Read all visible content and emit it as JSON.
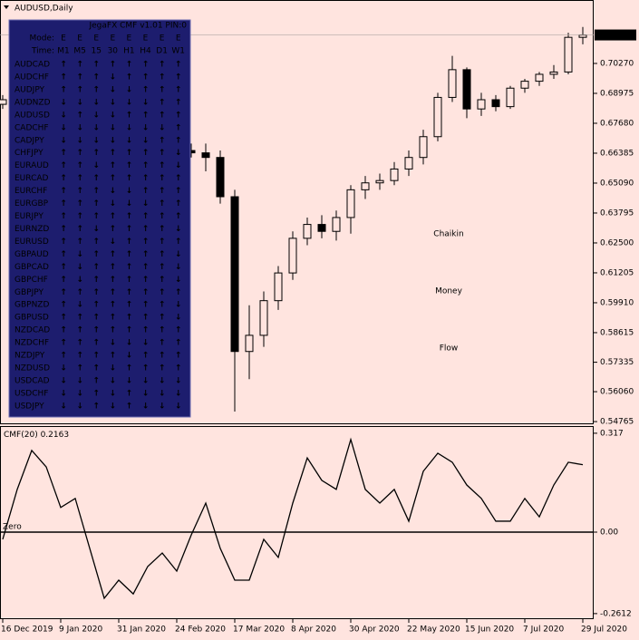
{
  "chart_data": [
    {
      "type": "candlestick",
      "title": "AUDUSD,Daily",
      "categories": [
        "16 Dec 2019",
        null,
        null,
        null,
        "9 Jan 2020",
        null,
        null,
        null,
        "31 Jan 2020",
        null,
        null,
        null,
        "24 Feb 2020",
        null,
        null,
        null,
        "17 Mar 2020",
        null,
        null,
        null,
        "8 Apr 2020",
        null,
        null,
        null,
        "30 Apr 2020",
        null,
        null,
        null,
        "22 May 2020",
        null,
        null,
        null,
        "15 Jun 2020",
        null,
        null,
        null,
        "7 Jul 2020",
        null,
        null,
        null,
        "29 Jul 2020"
      ],
      "open": [
        0.685,
        0.687,
        0.69,
        0.696,
        0.699,
        0.693,
        0.688,
        0.686,
        0.683,
        0.676,
        0.671,
        0.673,
        0.668,
        0.665,
        0.664,
        0.662,
        0.645,
        0.578,
        0.585,
        0.6,
        0.612,
        0.627,
        0.633,
        0.63,
        0.636,
        0.648,
        0.651,
        0.652,
        0.657,
        0.662,
        0.671,
        0.688,
        0.7,
        0.683,
        0.687,
        0.684,
        0.692,
        0.695,
        0.698,
        0.699,
        0.714
      ],
      "high": [
        0.689,
        0.692,
        0.698,
        0.701,
        0.701,
        0.695,
        0.69,
        0.688,
        0.685,
        0.678,
        0.675,
        0.675,
        0.67,
        0.668,
        0.668,
        0.665,
        0.648,
        0.598,
        0.604,
        0.615,
        0.63,
        0.636,
        0.637,
        0.639,
        0.65,
        0.654,
        0.655,
        0.66,
        0.665,
        0.674,
        0.69,
        0.706,
        0.701,
        0.69,
        0.689,
        0.693,
        0.696,
        0.699,
        0.702,
        0.716,
        0.7185
      ],
      "low": [
        0.683,
        0.685,
        0.688,
        0.694,
        0.692,
        0.687,
        0.684,
        0.681,
        0.675,
        0.67,
        0.669,
        0.667,
        0.664,
        0.662,
        0.656,
        0.642,
        0.552,
        0.566,
        0.58,
        0.596,
        0.609,
        0.624,
        0.627,
        0.626,
        0.629,
        0.644,
        0.648,
        0.65,
        0.654,
        0.659,
        0.669,
        0.686,
        0.679,
        0.68,
        0.682,
        0.683,
        0.69,
        0.693,
        0.696,
        0.698,
        0.711
      ],
      "close": [
        0.687,
        0.69,
        0.696,
        0.699,
        0.693,
        0.688,
        0.686,
        0.683,
        0.676,
        0.671,
        0.673,
        0.668,
        0.665,
        0.664,
        0.662,
        0.645,
        0.578,
        0.585,
        0.6,
        0.612,
        0.627,
        0.633,
        0.63,
        0.636,
        0.648,
        0.651,
        0.652,
        0.657,
        0.662,
        0.671,
        0.688,
        0.7,
        0.683,
        0.687,
        0.684,
        0.692,
        0.695,
        0.698,
        0.699,
        0.714,
        0.715
      ],
      "color": "#000000",
      "ylim": [
        0.5465,
        0.7231
      ],
      "yticks": [
        {
          "value": 0.7027,
          "label": "0.70270"
        },
        0.68975,
        {
          "value": 0.6768,
          "label": "0.67680"
        },
        0.66385,
        {
          "value": 0.6509,
          "label": "0.65090"
        },
        0.63795,
        {
          "value": 0.625,
          "label": "0.62500"
        },
        0.61205,
        {
          "value": 0.5991,
          "label": "0.59910"
        },
        0.58615,
        0.57335,
        {
          "value": 0.5606,
          "label": "0.56060"
        },
        0.54765
      ],
      "last_price": 0.71503,
      "annotation": [
        "Chaikin",
        "Money",
        "Flow"
      ],
      "annotation_color": "#ff8533"
    },
    {
      "type": "line",
      "name": "CMF(20)",
      "last_value": 0.2163,
      "color": "#000000",
      "values": [
        -0.023,
        0.137,
        0.262,
        0.209,
        0.079,
        0.108,
        -0.052,
        -0.212,
        -0.154,
        -0.198,
        -0.11,
        -0.067,
        -0.125,
        -0.009,
        0.093,
        -0.052,
        -0.154,
        -0.154,
        -0.023,
        -0.081,
        0.093,
        0.238,
        0.166,
        0.137,
        0.297,
        0.137,
        0.093,
        0.137,
        0.035,
        0.195,
        0.253,
        0.224,
        0.151,
        0.108,
        0.035,
        0.035,
        0.108,
        0.049,
        0.151,
        0.224,
        0.216
      ],
      "ylim": [
        -0.279,
        0.34
      ],
      "yticks": [
        0.317,
        {
          "value": 0,
          "label": "0.00"
        },
        -0.2612
      ],
      "level": {
        "value": 0,
        "label": "Zero"
      }
    }
  ],
  "panel": {
    "header": "JegaFX CMF v1.01 PIN:0",
    "mode_label": "Mode:",
    "time_label": "Time:",
    "modes": [
      "E",
      "E",
      "E",
      "E",
      "E",
      "E",
      "E",
      "E"
    ],
    "timeframes": [
      "M1",
      "M5",
      "15",
      "30",
      "H1",
      "H4",
      "D1",
      "W1"
    ],
    "arrow_colors": {
      "↑": "#5ee8d8",
      "↓": "#ff2fd8"
    },
    "rows": [
      {
        "symbol": "AUDCAD",
        "color": "#5ee8d8",
        "arrows": [
          "↑",
          "↑",
          "↑",
          "↑",
          "↑",
          "↑",
          "↑",
          "↑"
        ]
      },
      {
        "symbol": "AUDCHF",
        "color": "#ffffff",
        "arrows": [
          "↑",
          "↑",
          "↑",
          "↓",
          "↑",
          "↑",
          "↑",
          "↑"
        ]
      },
      {
        "symbol": "AUDJPY",
        "color": "#ffffff",
        "arrows": [
          "↑",
          "↑",
          "↑",
          "↓",
          "↓",
          "↑",
          "↑",
          "↑"
        ]
      },
      {
        "symbol": "AUDNZD",
        "color": "#ffffff",
        "arrows": [
          "↓",
          "↓",
          "↓",
          "↓",
          "↓",
          "↓",
          "↑",
          "↑"
        ]
      },
      {
        "symbol": "AUDUSD",
        "color": "#ffffff",
        "arrows": [
          "↓",
          "↑",
          "↓",
          "↓",
          "↑",
          "↑",
          "↑",
          "↑"
        ]
      },
      {
        "symbol": "CADCHF",
        "color": "#ffffff",
        "arrows": [
          "↓",
          "↓",
          "↓",
          "↓",
          "↓",
          "↓",
          "↓",
          "↑"
        ]
      },
      {
        "symbol": "CADJPY",
        "color": "#ffffff",
        "arrows": [
          "↓",
          "↓",
          "↓",
          "↓",
          "↓",
          "↓",
          "↑",
          "↑"
        ]
      },
      {
        "symbol": "CHFJPY",
        "color": "#ffffff",
        "arrows": [
          "↑",
          "↑",
          "↑",
          "↑",
          "↑",
          "↑",
          "↑",
          "↓"
        ]
      },
      {
        "symbol": "EURAUD",
        "color": "#ffffff",
        "arrows": [
          "↑",
          "↑",
          "↓",
          "↑",
          "↑",
          "↑",
          "↑",
          "↓"
        ]
      },
      {
        "symbol": "EURCAD",
        "color": "#5ee8d8",
        "arrows": [
          "↑",
          "↑",
          "↑",
          "↑",
          "↑",
          "↑",
          "↑",
          "↑"
        ]
      },
      {
        "symbol": "EURCHF",
        "color": "#ffffff",
        "arrows": [
          "↑",
          "↑",
          "↑",
          "↓",
          "↓",
          "↑",
          "↑",
          "↑"
        ]
      },
      {
        "symbol": "EURGBP",
        "color": "#ffffff",
        "arrows": [
          "↑",
          "↑",
          "↑",
          "↓",
          "↓",
          "↓",
          "↑",
          "↑"
        ]
      },
      {
        "symbol": "EURJPY",
        "color": "#ffffff",
        "arrows": [
          "↑",
          "↑",
          "↑",
          "↑",
          "↑",
          "↑",
          "↑",
          "↑"
        ]
      },
      {
        "symbol": "EURNZD",
        "color": "#ffffff",
        "arrows": [
          "↑",
          "↑",
          "↓",
          "↑",
          "↑",
          "↑",
          "↑",
          "↓"
        ]
      },
      {
        "symbol": "EURUSD",
        "color": "#ffffff",
        "arrows": [
          "↑",
          "↑",
          "↑",
          "↓",
          "↑",
          "↑",
          "↑",
          "↑"
        ]
      },
      {
        "symbol": "GBPAUD",
        "color": "#ffffff",
        "arrows": [
          "↑",
          "↓",
          "↑",
          "↑",
          "↑",
          "↑",
          "↑",
          "↓"
        ]
      },
      {
        "symbol": "GBPCAD",
        "color": "#5ee8d8",
        "arrows": [
          "↑",
          "↓",
          "↑",
          "↑",
          "↑",
          "↑",
          "↑",
          "↓"
        ]
      },
      {
        "symbol": "GBPCHF",
        "color": "#ffffff",
        "arrows": [
          "↑",
          "↓",
          "↑",
          "↑",
          "↑",
          "↑",
          "↑",
          "↓"
        ]
      },
      {
        "symbol": "GBPJPY",
        "color": "#5ee8d8",
        "arrows": [
          "↑",
          "↑",
          "↑",
          "↑",
          "↑",
          "↑",
          "↑",
          "↑"
        ]
      },
      {
        "symbol": "GBPNZD",
        "color": "#ffffff",
        "arrows": [
          "↑",
          "↓",
          "↑",
          "↑",
          "↑",
          "↑",
          "↑",
          "↓"
        ]
      },
      {
        "symbol": "GBPUSD",
        "color": "#5ee8d8",
        "arrows": [
          "↑",
          "↑",
          "↑",
          "↑",
          "↑",
          "↑",
          "↑",
          "↓"
        ]
      },
      {
        "symbol": "NZDCAD",
        "color": "#5ee8d8",
        "arrows": [
          "↑",
          "↑",
          "↑",
          "↑",
          "↑",
          "↑",
          "↑",
          "↑"
        ]
      },
      {
        "symbol": "NZDCHF",
        "color": "#ffffff",
        "arrows": [
          "↑",
          "↑",
          "↑",
          "↓",
          "↓",
          "↓",
          "↑",
          "↑"
        ]
      },
      {
        "symbol": "NZDJPY",
        "color": "#ffffff",
        "arrows": [
          "↑",
          "↑",
          "↑",
          "↑",
          "↓",
          "↑",
          "↑",
          "↑"
        ]
      },
      {
        "symbol": "NZDUSD",
        "color": "#ffffff",
        "arrows": [
          "↓",
          "↑",
          "↑",
          "↓",
          "↑",
          "↑",
          "↑",
          "↑"
        ]
      },
      {
        "symbol": "USDCAD",
        "color": "#ffffff",
        "arrows": [
          "↓",
          "↓",
          "↑",
          "↓",
          "↓",
          "↓",
          "↓",
          "↓"
        ]
      },
      {
        "symbol": "USDCHF",
        "color": "#ffffff",
        "arrows": [
          "↓",
          "↓",
          "↑",
          "↓",
          "↑",
          "↓",
          "↓",
          "↓"
        ]
      },
      {
        "symbol": "USDJPY",
        "color": "#ffffff",
        "arrows": [
          "↓",
          "↓",
          "↑",
          "↓",
          "↑",
          "↓",
          "↓",
          "↓"
        ]
      }
    ]
  }
}
